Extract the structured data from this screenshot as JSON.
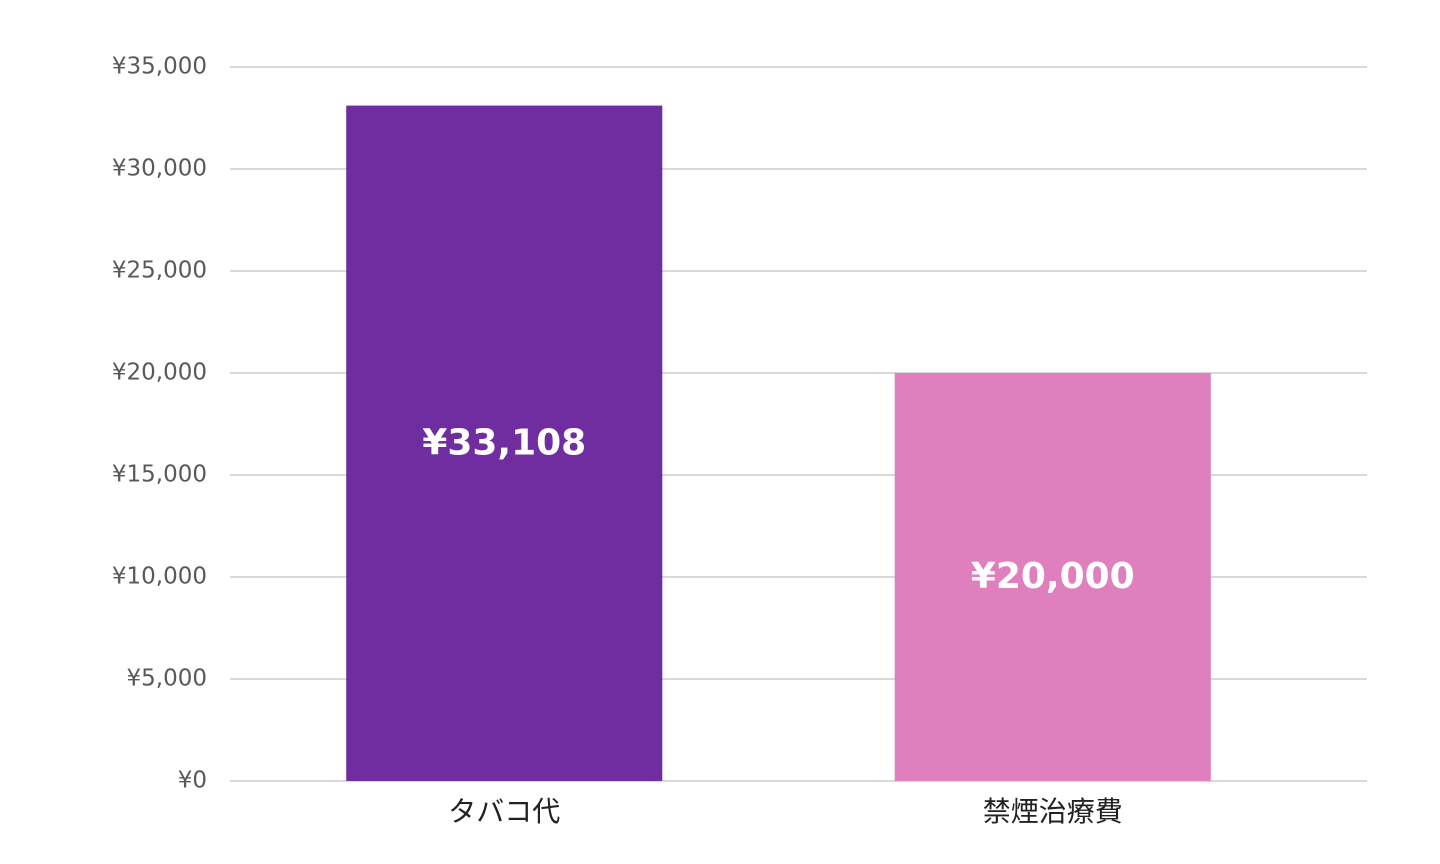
{
  "chart_data": {
    "type": "bar",
    "categories": [
      "タバコ代",
      "禁煙治療費"
    ],
    "values": [
      33108,
      20000
    ],
    "value_labels": [
      "¥33,108",
      "¥20,000"
    ],
    "colors": [
      "#6f2da0",
      "#e07fbd"
    ],
    "ylim": [
      0,
      35000
    ],
    "yticks": [
      {
        "value": 0,
        "label": "¥0"
      },
      {
        "value": 5000,
        "label": "¥5,000"
      },
      {
        "value": 10000,
        "label": "¥10,000"
      },
      {
        "value": 15000,
        "label": "¥15,000"
      },
      {
        "value": 20000,
        "label": "¥20,000"
      },
      {
        "value": 25000,
        "label": "¥25,000"
      },
      {
        "value": 30000,
        "label": "¥30,000"
      },
      {
        "value": 35000,
        "label": "¥35,000"
      }
    ],
    "grid": true
  }
}
